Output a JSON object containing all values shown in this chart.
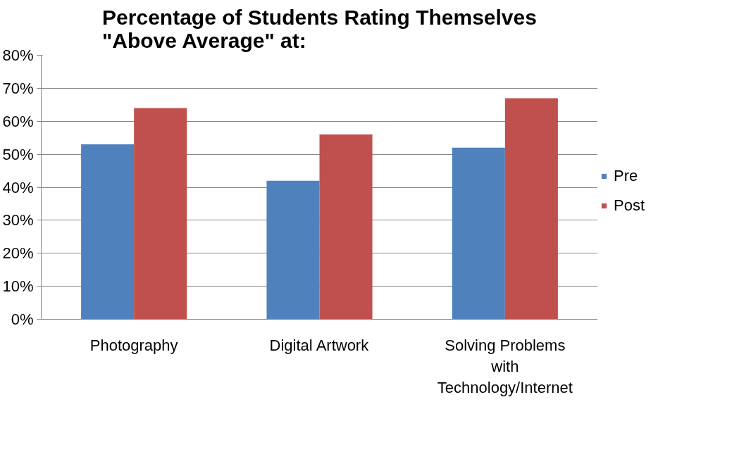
{
  "chart_data": {
    "type": "bar",
    "title": "Percentage of Students Rating Themselves \"Above Average\" at:",
    "categories": [
      "Photography",
      "Digital Artwork",
      "Solving Problems with Technology/Internet"
    ],
    "series": [
      {
        "name": "Pre",
        "color": "#4f81bd",
        "values": [
          53,
          42,
          52
        ]
      },
      {
        "name": "Post",
        "color": "#c0504d",
        "values": [
          64,
          56,
          67
        ]
      }
    ],
    "ylim": [
      0,
      80
    ],
    "yticks": [
      {
        "value": 0,
        "label": "0%"
      },
      {
        "value": 10,
        "label": "10%"
      },
      {
        "value": 20,
        "label": "20%"
      },
      {
        "value": 30,
        "label": "30%"
      },
      {
        "value": 40,
        "label": "40%"
      },
      {
        "value": 50,
        "label": "50%"
      },
      {
        "value": 60,
        "label": "60%"
      },
      {
        "value": 70,
        "label": "70%"
      },
      {
        "value": 80,
        "label": "80%"
      }
    ],
    "grid": "y",
    "legend": "right"
  }
}
